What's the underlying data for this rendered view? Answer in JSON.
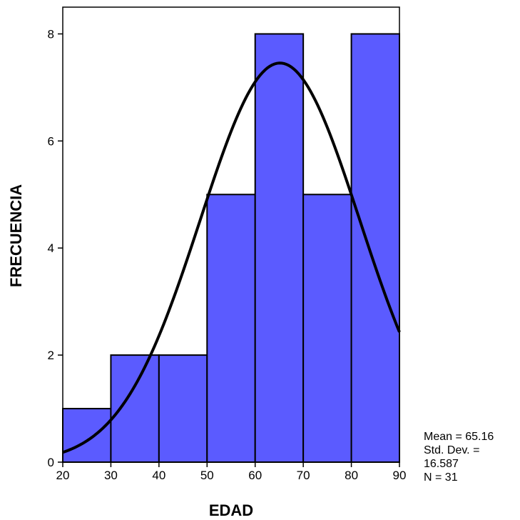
{
  "chart_data": {
    "type": "bar",
    "subtype": "histogram",
    "xlabel": "EDAD",
    "ylabel": "FRECUENCIA",
    "xlim": [
      20,
      90
    ],
    "ylim": [
      0,
      8.5
    ],
    "bin_edges": [
      20,
      30,
      40,
      50,
      60,
      70,
      80,
      90
    ],
    "values": [
      1,
      2,
      2,
      5,
      8,
      5,
      8
    ],
    "x_ticks": [
      20,
      30,
      40,
      50,
      60,
      70,
      80,
      90
    ],
    "y_ticks": [
      0,
      2,
      4,
      6,
      8
    ],
    "bar_color": "#5b5bff",
    "bar_edge_color": "#000000",
    "normal_curve": {
      "mean": 65.16,
      "std": 16.587,
      "n": 31,
      "bin_width": 10,
      "color": "#000000"
    },
    "grid": false,
    "stats": {
      "mean_label": "Mean = 65.16",
      "std_label": "Std. Dev. =",
      "std_value": "16.587",
      "n_label": "N = 31"
    }
  }
}
